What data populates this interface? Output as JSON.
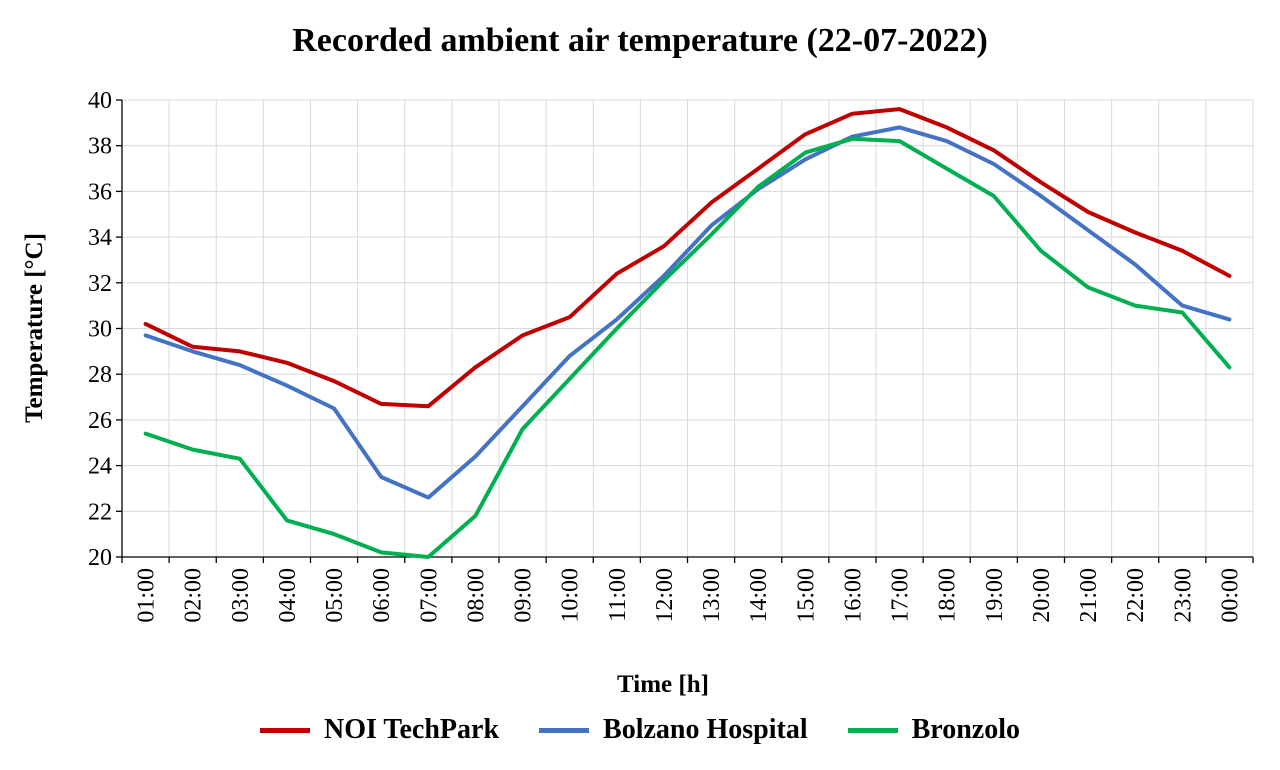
{
  "chart_data": {
    "type": "line",
    "title": "Recorded ambient air temperature (22-07-2022)",
    "xlabel": "Time [h]",
    "ylabel": "Temperature [°C]",
    "ylim": [
      20,
      40
    ],
    "yticks": [
      20,
      22,
      24,
      26,
      28,
      30,
      32,
      34,
      36,
      38,
      40
    ],
    "grid": true,
    "legend_position": "bottom",
    "categories": [
      "01:00",
      "02:00",
      "03:00",
      "04:00",
      "05:00",
      "06:00",
      "07:00",
      "08:00",
      "09:00",
      "10:00",
      "11:00",
      "12:00",
      "13:00",
      "14:00",
      "15:00",
      "16:00",
      "17:00",
      "18:00",
      "19:00",
      "20:00",
      "21:00",
      "22:00",
      "23:00",
      "00:00"
    ],
    "series": [
      {
        "name": "NOI TechPark",
        "color": "#c00000",
        "values": [
          30.2,
          29.2,
          29.0,
          28.5,
          27.7,
          26.7,
          26.6,
          28.3,
          29.7,
          30.5,
          32.4,
          33.6,
          35.5,
          37.0,
          38.5,
          39.4,
          39.6,
          38.8,
          37.8,
          36.4,
          35.1,
          34.2,
          33.4,
          32.3
        ]
      },
      {
        "name": "Bolzano Hospital",
        "color": "#4472c4",
        "values": [
          29.7,
          29.0,
          28.4,
          27.5,
          26.5,
          23.5,
          22.6,
          24.4,
          26.6,
          28.8,
          30.4,
          32.3,
          34.5,
          36.1,
          37.4,
          38.4,
          38.8,
          38.2,
          37.2,
          35.8,
          34.3,
          32.8,
          31.0,
          30.4
        ]
      },
      {
        "name": "Bronzolo",
        "color": "#00b050",
        "values": [
          25.4,
          24.7,
          24.3,
          21.6,
          21.0,
          20.2,
          20.0,
          21.8,
          25.6,
          27.8,
          30.0,
          32.1,
          34.1,
          36.2,
          37.7,
          38.3,
          38.2,
          37.0,
          35.8,
          33.4,
          31.8,
          31.0,
          30.7,
          28.3
        ]
      }
    ]
  }
}
